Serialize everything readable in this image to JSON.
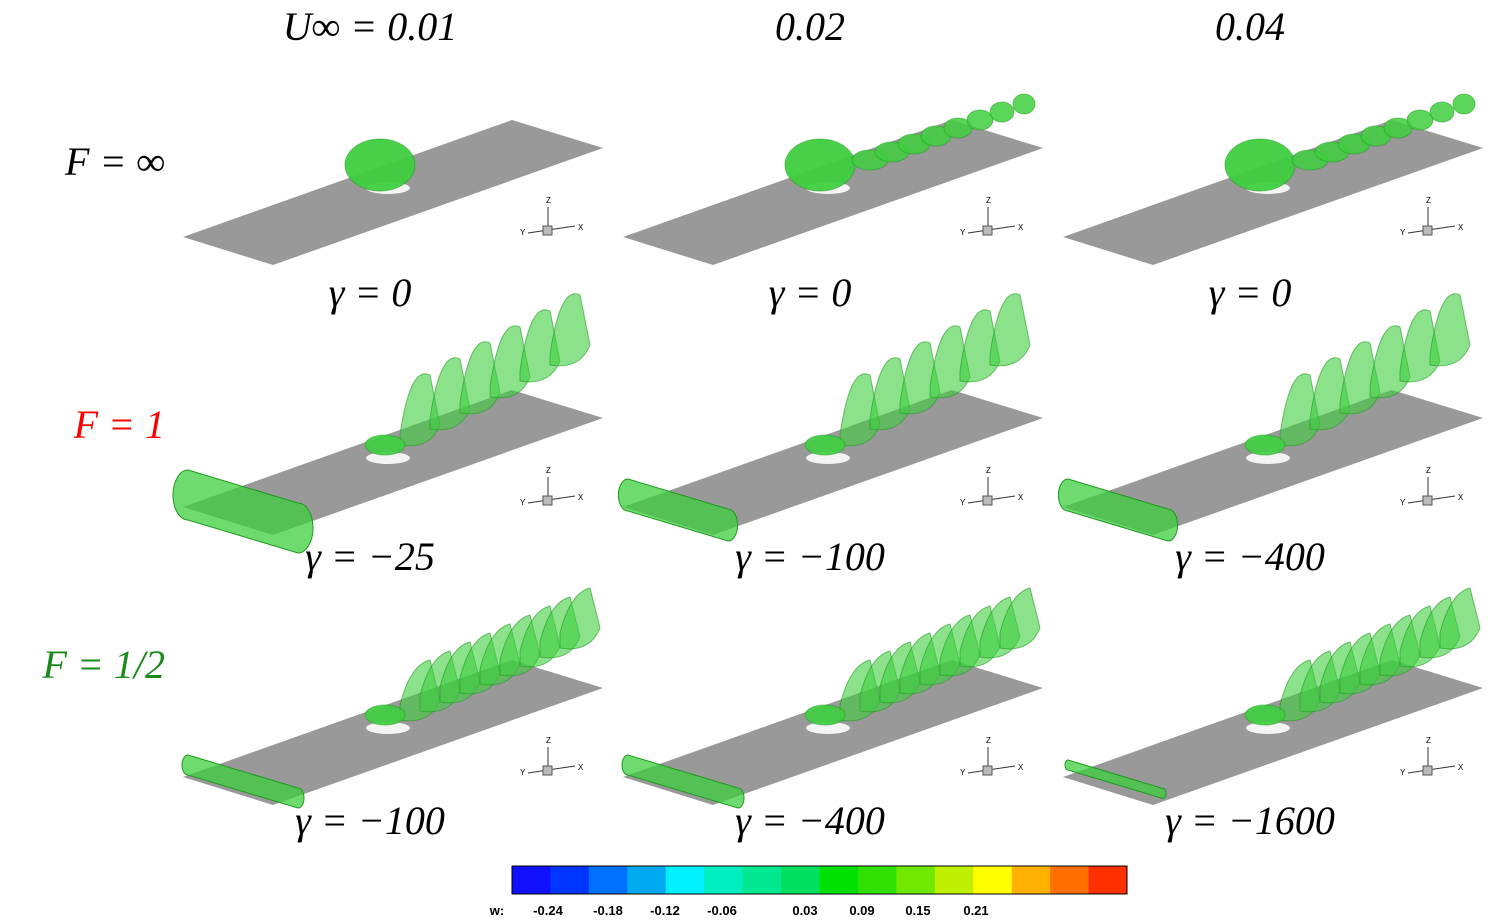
{
  "columns": [
    "U∞ = 0.01",
    "0.02",
    "0.04"
  ],
  "rows": [
    {
      "label": "F = ∞",
      "color": "#000000",
      "gammas": [
        "γ = 0",
        "γ = 0",
        "γ = 0"
      ]
    },
    {
      "label": "F = 1",
      "color": "#ff0000",
      "gammas": [
        "γ = −25",
        "γ = −100",
        "γ = −400"
      ]
    },
    {
      "label": "F = 1/2",
      "color": "#1a8a1a",
      "gammas": [
        "γ = −100",
        "γ = −400",
        "γ = −1600"
      ]
    }
  ],
  "triad": {
    "z": "Z",
    "y": "Y",
    "x": "X"
  },
  "colorbar": {
    "label": "w:",
    "ticks": [
      "-0.24",
      "-0.18",
      "-0.12",
      "-0.06",
      "0.03",
      "0.09",
      "0.15",
      "0.21"
    ],
    "colors": [
      "#1010ff",
      "#0035ff",
      "#0070ff",
      "#00aaf0",
      "#00f0ff",
      "#00eec0",
      "#00e890",
      "#00e060",
      "#00e000",
      "#30e000",
      "#70e800",
      "#c0f000",
      "#ffff00",
      "#ffb000",
      "#ff7000",
      "#ff3000"
    ]
  }
}
